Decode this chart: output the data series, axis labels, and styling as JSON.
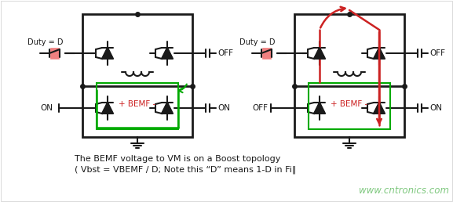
{
  "bg_color": "#ffffff",
  "border_color": "#cccccc",
  "text1": "The BEMF voltage to VM is on a Boost topology",
  "text2": "( Vbst = VBEMF / D; Note this “D” means 1-D in Fi‖",
  "watermark": "www.cntronics.com",
  "watermark_color": "#7ec87e",
  "label_duty": "Duty = D",
  "label_off": "OFF",
  "label_on": "ON",
  "label_bemf": "+ BEMF -",
  "green_color": "#00aa00",
  "red_color": "#cc2222",
  "pink_fill": "#f08080",
  "dark_color": "#1a1a1a",
  "fig_width": 5.77,
  "fig_height": 2.58,
  "dpi": 100
}
